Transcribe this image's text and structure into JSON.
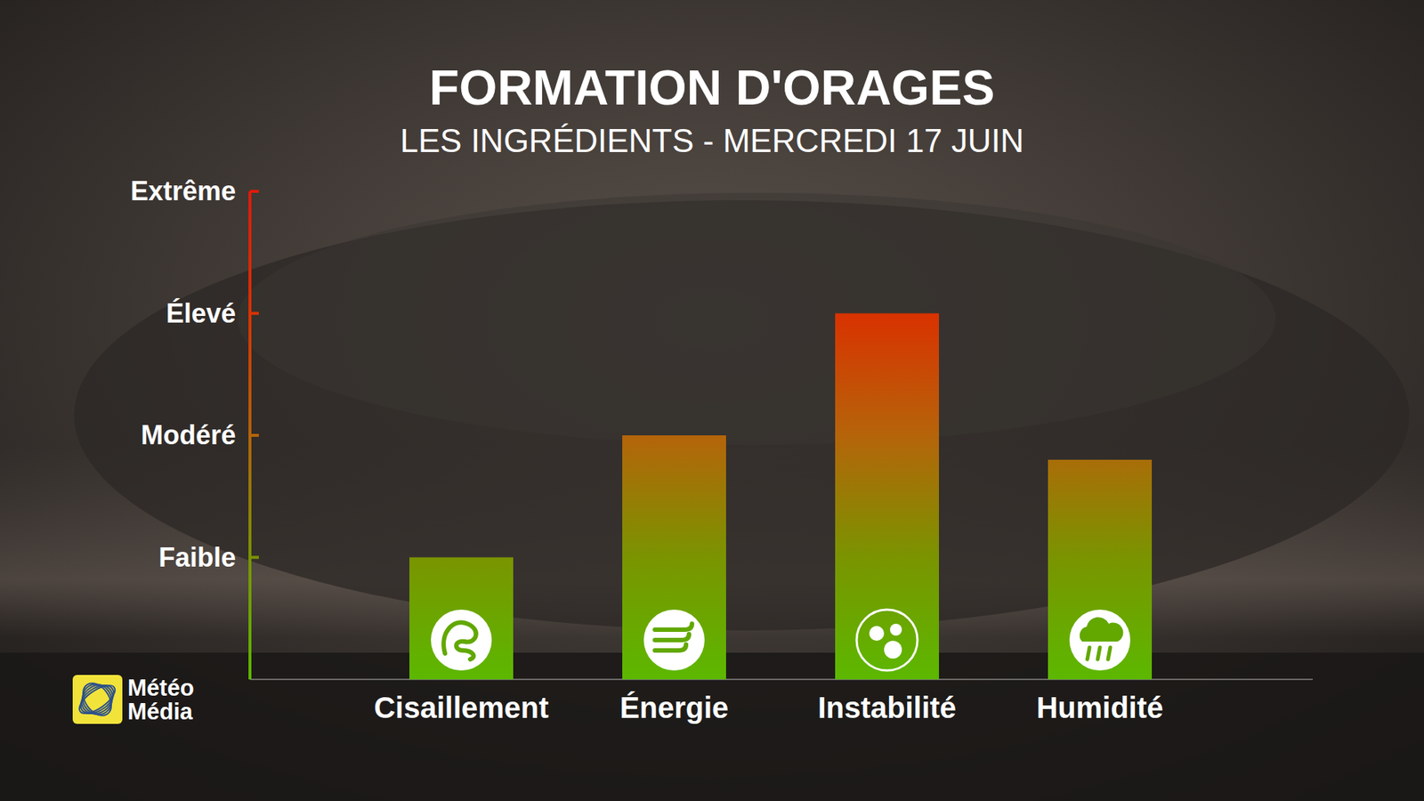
{
  "chart_data": {
    "type": "bar",
    "title": "FORMATION D'ORAGES",
    "subtitle": "LES INGRÉDIENTS - MERCREDI 17 JUIN",
    "categories": [
      "Cisaillement",
      "Énergie",
      "Instabilité",
      "Humidité"
    ],
    "values": [
      1,
      2,
      3,
      1.8
    ],
    "ylim": [
      0,
      4
    ],
    "yticks": [
      {
        "value": 1,
        "label": "Faible"
      },
      {
        "value": 2,
        "label": "Modéré"
      },
      {
        "value": 3,
        "label": "Élevé"
      },
      {
        "value": 4,
        "label": "Extrême"
      }
    ],
    "grid": false,
    "logo": [
      "Météo",
      "Média"
    ]
  }
}
